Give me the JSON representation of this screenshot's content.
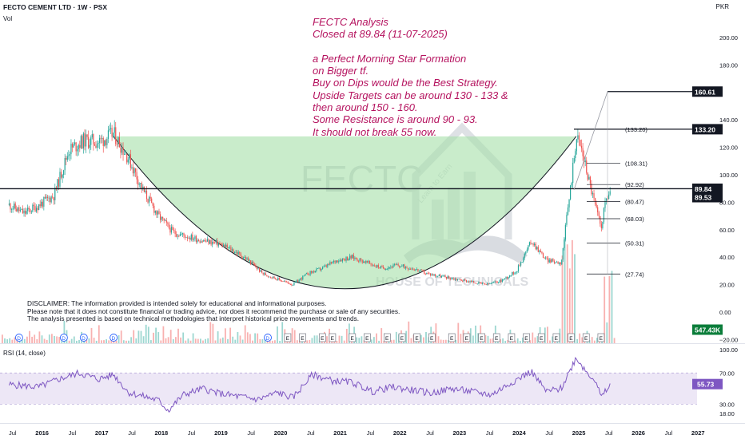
{
  "header": {
    "title": "FECTO CEMENT LTD · 1W · PSX",
    "volume_label": "Vol",
    "currency": "PKR"
  },
  "analysis_lines": [
    "FECTC Analysis",
    "Closed at 89.84 (11-07-2025)",
    "",
    "a Perfect Morning Star Formation",
    "on Bigger tf.",
    "Buy on Dips would be the Best Strategy.",
    "Upside Targets can be around 130 - 133 &",
    "then around 150 - 160.",
    "Some Resistance is around 90 - 93.",
    "It should not break 55 now."
  ],
  "disclaimer_lines": [
    "DISCLAIMER: The information provided is intended solely for educational and informational purposes.",
    "Please note that it does not constitute financial or trading advice, nor does it recommend the purchase or sale of any securities.",
    "The analysis presented is based on technical methodologies that interpret historical price movements and trends."
  ],
  "watermark": {
    "symbol": "FECTC",
    "brand": "HOUSE OF TECHNICALS",
    "tagline": "Learn to Earn"
  },
  "colors": {
    "up": "#26a69a",
    "down": "#ef5350",
    "annotation": "#b5135f",
    "cup_fill": "#a5dfa9",
    "rsi_line": "#7e57c2",
    "rsi_band": "#ede7f6"
  },
  "chart_data": [
    {
      "type": "candlestick",
      "title": "FECTO CEMENT LTD · 1W · PSX",
      "y_axis": {
        "ticks": [
          200.0,
          180.0,
          140.0,
          120.0,
          100.0,
          80.0,
          60.0,
          40.0,
          20.0,
          0.0,
          -20.0
        ],
        "tick_labels": [
          "200.00",
          "180.00",
          "140.00",
          "120.00",
          "100.00",
          "80.00",
          "60.00",
          "40.00",
          "20.00",
          "0.00",
          "−20.00"
        ],
        "unit": "PKR"
      },
      "x_axis": {
        "tick_labels": [
          "Jul",
          "2016",
          "Jul",
          "2017",
          "Jul",
          "2018",
          "Jul",
          "2019",
          "Jul",
          "2020",
          "Jul",
          "2021",
          "Jul",
          "2022",
          "Jul",
          "2023",
          "Jul",
          "2024",
          "Jul",
          "2025",
          "Jul",
          "2026",
          "Jul",
          "2027"
        ]
      },
      "price_keypoints": [
        [
          "2015-06",
          78
        ],
        [
          "2015-09",
          72
        ],
        [
          "2015-12",
          78
        ],
        [
          "2016-03",
          85
        ],
        [
          "2016-06",
          118
        ],
        [
          "2016-09",
          125
        ],
        [
          "2016-12",
          124
        ],
        [
          "2017-03",
          130
        ],
        [
          "2017-06",
          112
        ],
        [
          "2017-09",
          88
        ],
        [
          "2017-12",
          70
        ],
        [
          "2018-03",
          58
        ],
        [
          "2018-06",
          55
        ],
        [
          "2018-09",
          52
        ],
        [
          "2018-12",
          50
        ],
        [
          "2019-03",
          45
        ],
        [
          "2019-06",
          38
        ],
        [
          "2019-09",
          28
        ],
        [
          "2019-12",
          24
        ],
        [
          "2020-03",
          20
        ],
        [
          "2020-06",
          28
        ],
        [
          "2020-09",
          32
        ],
        [
          "2020-12",
          38
        ],
        [
          "2021-03",
          40
        ],
        [
          "2021-06",
          36
        ],
        [
          "2021-09",
          32
        ],
        [
          "2021-12",
          34
        ],
        [
          "2022-03",
          32
        ],
        [
          "2022-06",
          28
        ],
        [
          "2022-09",
          26
        ],
        [
          "2022-12",
          24
        ],
        [
          "2023-03",
          22
        ],
        [
          "2023-06",
          20
        ],
        [
          "2023-09",
          23
        ],
        [
          "2023-12",
          30
        ],
        [
          "2024-03",
          52
        ],
        [
          "2024-06",
          38
        ],
        [
          "2024-09",
          36
        ],
        [
          "2024-11",
          95
        ],
        [
          "2024-12",
          128
        ],
        [
          "2025-01",
          120
        ],
        [
          "2025-02",
          105
        ],
        [
          "2025-03",
          90
        ],
        [
          "2025-04",
          75
        ],
        [
          "2025-05",
          62
        ],
        [
          "2025-06",
          82
        ],
        [
          "2025-07",
          89.84
        ]
      ],
      "horizontal_lines": [
        {
          "value": 89.84,
          "label": "89.84"
        },
        {
          "value": 133.2,
          "label": "133.20"
        },
        {
          "value": 160.61,
          "label": "160.61"
        }
      ],
      "price_labels": [
        {
          "value": 89.53,
          "label": "89.53"
        },
        {
          "value": 547.43,
          "label": "547.43K",
          "series": "volume"
        }
      ],
      "fib_levels": [
        {
          "value": 133.2,
          "label": "(133.20)"
        },
        {
          "value": 108.31,
          "label": "(108.31)"
        },
        {
          "value": 92.92,
          "label": "(92.92)"
        },
        {
          "value": 80.47,
          "label": "(80.47)"
        },
        {
          "value": 68.03,
          "label": "(68.03)"
        },
        {
          "value": 50.31,
          "label": "(50.31)"
        },
        {
          "value": 27.74,
          "label": "(27.74)"
        }
      ],
      "pattern": {
        "type": "cup",
        "rim_value": 128,
        "start": "2017-03",
        "end": "2024-12",
        "bottom": 17
      },
      "event_markers": [
        {
          "date": "2015-08",
          "label": "D"
        },
        {
          "date": "2016-05",
          "label": "D"
        },
        {
          "date": "2016-09",
          "label": "D"
        },
        {
          "date": "2017-03",
          "label": "D"
        },
        {
          "date": "2019-10",
          "label": "D"
        },
        {
          "date": "2020-02",
          "label": "E"
        },
        {
          "date": "2020-05",
          "label": "E"
        },
        {
          "date": "2020-09",
          "label": "E"
        },
        {
          "date": "2020-11",
          "label": "E"
        },
        {
          "date": "2021-03",
          "label": "E"
        },
        {
          "date": "2021-06",
          "label": "E"
        },
        {
          "date": "2021-10",
          "label": "E"
        },
        {
          "date": "2022-01",
          "label": "E"
        },
        {
          "date": "2022-04",
          "label": "E"
        },
        {
          "date": "2022-07",
          "label": "E"
        },
        {
          "date": "2022-11",
          "label": "E"
        },
        {
          "date": "2023-02",
          "label": "E"
        },
        {
          "date": "2023-05",
          "label": "E"
        },
        {
          "date": "2023-08",
          "label": "E"
        },
        {
          "date": "2023-11",
          "label": "E"
        },
        {
          "date": "2024-02",
          "label": "E"
        },
        {
          "date": "2024-05",
          "label": "E"
        },
        {
          "date": "2024-08",
          "label": "E"
        },
        {
          "date": "2024-11",
          "label": "E"
        },
        {
          "date": "2025-02",
          "label": "E"
        },
        {
          "date": "2025-05",
          "label": "E"
        }
      ]
    },
    {
      "type": "line",
      "title": "RSI (14, close)",
      "y_axis": {
        "ticks": [
          100.0,
          70.0,
          30.0,
          18.0
        ],
        "tick_labels": [
          "100.00",
          "70.00",
          "30.00",
          "18.00"
        ]
      },
      "bands": [
        30,
        70
      ],
      "current_value": {
        "value": 55.73,
        "label": "55.73"
      },
      "series": [
        {
          "values_keypoints": [
            [
              "2015-06",
              55
            ],
            [
              "2015-12",
              52
            ],
            [
              "2016-04",
              62
            ],
            [
              "2016-08",
              70
            ],
            [
              "2016-12",
              62
            ],
            [
              "2017-03",
              68
            ],
            [
              "2017-06",
              45
            ],
            [
              "2017-12",
              35
            ],
            [
              "2018-02",
              22
            ],
            [
              "2018-05",
              42
            ],
            [
              "2018-09",
              50
            ],
            [
              "2018-12",
              44
            ],
            [
              "2019-04",
              40
            ],
            [
              "2019-08",
              36
            ],
            [
              "2019-12",
              45
            ],
            [
              "2020-03",
              38
            ],
            [
              "2020-07",
              68
            ],
            [
              "2020-11",
              60
            ],
            [
              "2021-03",
              58
            ],
            [
              "2021-07",
              46
            ],
            [
              "2021-11",
              52
            ],
            [
              "2022-03",
              48
            ],
            [
              "2022-07",
              44
            ],
            [
              "2022-11",
              50
            ],
            [
              "2023-03",
              46
            ],
            [
              "2023-07",
              42
            ],
            [
              "2023-11",
              58
            ],
            [
              "2024-03",
              72
            ],
            [
              "2024-06",
              46
            ],
            [
              "2024-09",
              50
            ],
            [
              "2024-12",
              90
            ],
            [
              "2025-02",
              72
            ],
            [
              "2025-04",
              60
            ],
            [
              "2025-05",
              38
            ],
            [
              "2025-07",
              55.73
            ]
          ]
        }
      ]
    }
  ]
}
